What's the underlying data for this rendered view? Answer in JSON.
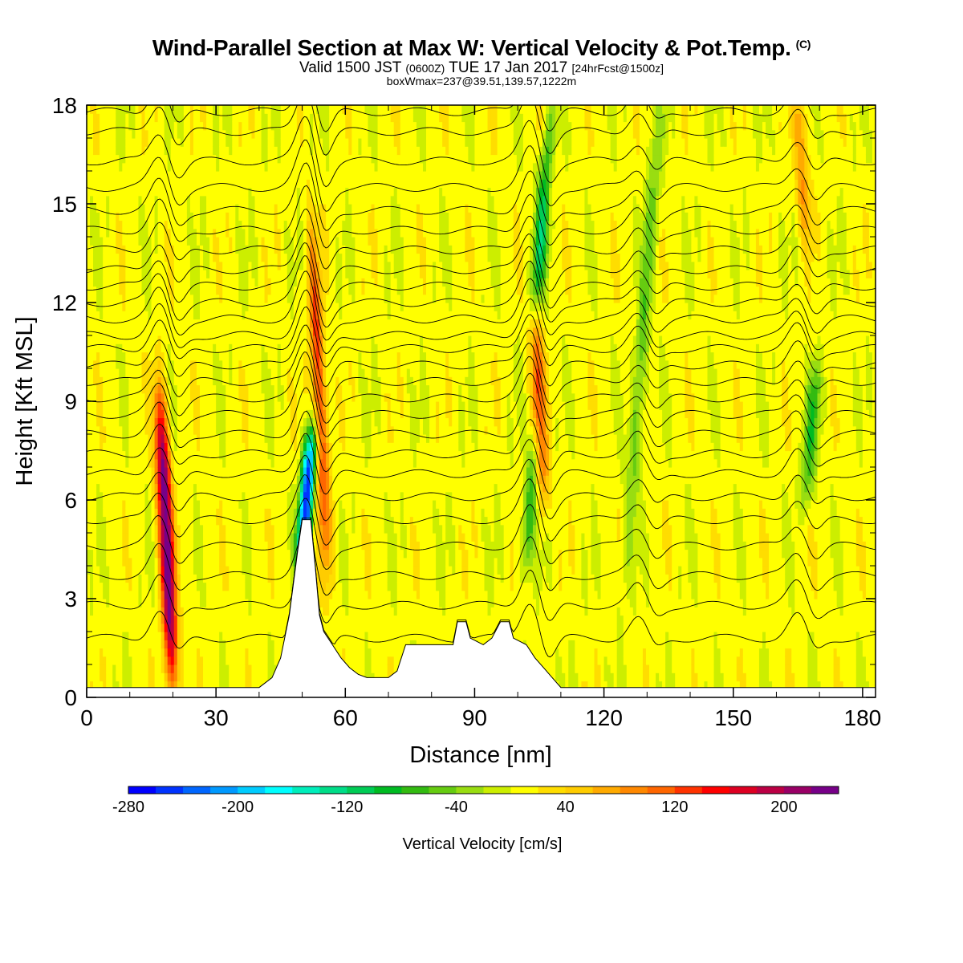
{
  "header": {
    "title": "Wind-Parallel Section at Max W: Vertical Velocity & Pot.Temp.",
    "copyright_mark": "(C)",
    "valid_prefix": "Valid 1500 JST",
    "utc_time": "(0600Z)",
    "date": "TUE 17 Jan 2017",
    "forecast": "[24hrFcst@1500z]",
    "box_info": "boxWmax=237@39.51,139.57,1222m"
  },
  "chart_data": {
    "type": "heatmap",
    "xlabel": "Distance [nm]",
    "ylabel": "Height [Kft MSL]",
    "xlim": [
      0,
      183
    ],
    "ylim": [
      0,
      18
    ],
    "x_ticks": [
      0,
      30,
      60,
      90,
      120,
      150,
      180
    ],
    "y_ticks": [
      0,
      3,
      6,
      9,
      12,
      15,
      18
    ],
    "colorbar": {
      "label": "Vertical Velocity [cm/s]",
      "min": -280,
      "max": 240,
      "step": 20,
      "tick_labels": [
        -280,
        -200,
        -120,
        -40,
        40,
        120,
        200
      ],
      "colors": [
        "#0000ff",
        "#0033ff",
        "#0066ff",
        "#0099ff",
        "#00ccff",
        "#00ffff",
        "#00eebb",
        "#00dd88",
        "#00cc55",
        "#00bb22",
        "#33bb11",
        "#66cc11",
        "#99dd11",
        "#ccee00",
        "#ffff00",
        "#ffdd00",
        "#ffcc00",
        "#ffaa00",
        "#ff8800",
        "#ff6600",
        "#ff3300",
        "#ff0000",
        "#dd0022",
        "#bb0044",
        "#990066",
        "#770088"
      ]
    },
    "terrain": [
      [
        0,
        0.3
      ],
      [
        40,
        0.3
      ],
      [
        43,
        0.6
      ],
      [
        45,
        1.2
      ],
      [
        47,
        2.5
      ],
      [
        49,
        4.5
      ],
      [
        50,
        5.4
      ],
      [
        52,
        5.4
      ],
      [
        53,
        4.0
      ],
      [
        54,
        2.5
      ],
      [
        55,
        2.0
      ],
      [
        57,
        1.6
      ],
      [
        59,
        1.2
      ],
      [
        61,
        0.9
      ],
      [
        63,
        0.7
      ],
      [
        65,
        0.6
      ],
      [
        70,
        0.6
      ],
      [
        72,
        0.8
      ],
      [
        74,
        1.6
      ],
      [
        80,
        1.6
      ],
      [
        85,
        1.6
      ],
      [
        86,
        2.3
      ],
      [
        88,
        2.3
      ],
      [
        89,
        1.8
      ],
      [
        92,
        1.6
      ],
      [
        94,
        1.8
      ],
      [
        96,
        2.3
      ],
      [
        98,
        2.3
      ],
      [
        99,
        1.8
      ],
      [
        102,
        1.6
      ],
      [
        104,
        1.2
      ],
      [
        106,
        0.9
      ],
      [
        108,
        0.6
      ],
      [
        110,
        0.3
      ],
      [
        183,
        0.3
      ]
    ],
    "updrafts": [
      {
        "x": 18.5,
        "z_min": 0.5,
        "z_max": 9.0,
        "peak": 237
      },
      {
        "x": 54,
        "z_min": 4.0,
        "z_max": 14.0,
        "peak": 120
      },
      {
        "x": 105,
        "z_min": 6.0,
        "z_max": 11.5,
        "peak": 110
      },
      {
        "x": 107,
        "z_min": 15.0,
        "z_max": 18.0,
        "peak": 40
      },
      {
        "x": 166,
        "z_min": 14.0,
        "z_max": 18.0,
        "peak": 70
      }
    ],
    "downdrafts": [
      {
        "x": 51,
        "z_min": 4.0,
        "z_max": 8.0,
        "peak": -260
      },
      {
        "x": 106,
        "z_min": 12.0,
        "z_max": 18.0,
        "peak": -120
      },
      {
        "x": 103,
        "z_min": 4.0,
        "z_max": 8.0,
        "peak": -80
      },
      {
        "x": 129,
        "z_min": 4.0,
        "z_max": 18.0,
        "peak": -60
      },
      {
        "x": 168,
        "z_min": 6.0,
        "z_max": 10.0,
        "peak": -80
      }
    ],
    "isentrope_base_heights_kft": [
      1.8,
      2.8,
      3.7,
      4.6,
      5.4,
      6.1,
      6.8,
      7.4,
      8.0,
      8.6,
      9.1,
      9.6,
      10.1,
      10.6,
      11.0,
      11.5,
      12.0,
      12.5,
      13.0,
      13.6,
      14.2,
      14.8,
      15.5,
      16.3,
      17.2,
      17.8
    ]
  }
}
